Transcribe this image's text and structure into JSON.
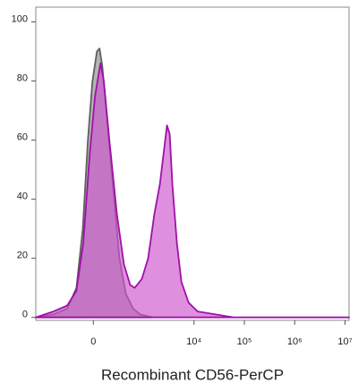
{
  "chart_data": {
    "type": "area",
    "x_label": "Recombinant CD56-PerCP",
    "xscale": "biexponential",
    "xlim": [
      -1380,
      12000000
    ],
    "ylim": [
      -1,
      105
    ],
    "xticks": [
      {
        "value": 0,
        "label": "0"
      },
      {
        "value": 10000,
        "label": "10⁴"
      },
      {
        "value": 100000,
        "label": "10⁵"
      },
      {
        "value": 1000000,
        "label": "10⁶"
      },
      {
        "value": 10000000,
        "label": "10⁷"
      }
    ],
    "yticks": [
      0,
      20,
      40,
      60,
      80,
      100
    ],
    "series": [
      {
        "color": "#606060",
        "fill": "#8c8c8c",
        "x": [
          -1380,
          -600,
          -300,
          -170,
          -100,
          -50,
          -8,
          33,
          58,
          85,
          140,
          220,
          300,
          420,
          600,
          840,
          1500
        ],
        "values": [
          0,
          1,
          3,
          10,
          30,
          60,
          80,
          90,
          91,
          85,
          65,
          40,
          20,
          8,
          3,
          1,
          0
        ]
      },
      {
        "color": "#a010a8",
        "fill": "#cc55cc",
        "x": [
          -1380,
          -600,
          -300,
          -170,
          -95,
          -33,
          16,
          67,
          100,
          160,
          260,
          380,
          520,
          650,
          910,
          1220,
          1630,
          2090,
          2470,
          2910,
          3290,
          3720,
          4580,
          5620,
          7810,
          11800,
          26800,
          60900,
          12000000
        ],
        "values": [
          0,
          2,
          4,
          9,
          25,
          55,
          75,
          86,
          80,
          60,
          35,
          18,
          11,
          10,
          13,
          20,
          35,
          45,
          55,
          65,
          62,
          45,
          25,
          12,
          5,
          2,
          1,
          0,
          0
        ]
      }
    ]
  }
}
